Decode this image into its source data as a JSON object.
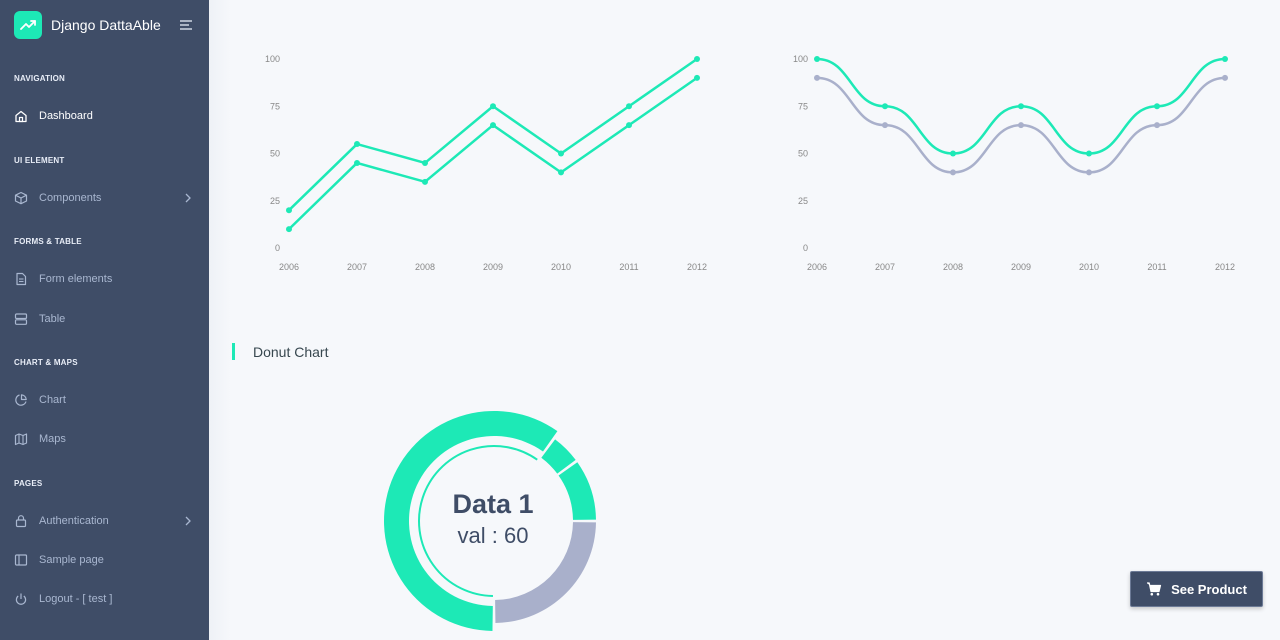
{
  "app": {
    "title": "Django DattaAble"
  },
  "sidebar": {
    "sections": [
      {
        "caption": "NAVIGATION",
        "items": [
          {
            "label": "Dashboard",
            "icon": "home-icon",
            "active": true
          }
        ]
      },
      {
        "caption": "UI ELEMENT",
        "items": [
          {
            "label": "Components",
            "icon": "box-icon",
            "has_children": true
          }
        ]
      },
      {
        "caption": "FORMS & TABLE",
        "items": [
          {
            "label": "Form elements",
            "icon": "file-text-icon"
          },
          {
            "label": "Table",
            "icon": "server-icon"
          }
        ]
      },
      {
        "caption": "CHART & MAPS",
        "items": [
          {
            "label": "Chart",
            "icon": "pie-chart-icon"
          },
          {
            "label": "Maps",
            "icon": "map-icon"
          }
        ]
      },
      {
        "caption": "PAGES",
        "items": [
          {
            "label": "Authentication",
            "icon": "lock-icon",
            "has_children": true
          },
          {
            "label": "Sample page",
            "icon": "sidebar-icon"
          },
          {
            "label": "Logout - [ test ]",
            "icon": "power-icon"
          }
        ]
      }
    ]
  },
  "colors": {
    "sidebar_bg": "#3f4d67",
    "accent": "#1de9b6",
    "secondary": "#a9b0cb"
  },
  "main": {
    "donut_section_title": "Donut Chart",
    "see_product_label": "See Product"
  },
  "chart_data": [
    {
      "type": "line",
      "x": [
        "2006",
        "2007",
        "2008",
        "2009",
        "2010",
        "2011",
        "2012"
      ],
      "series": [
        {
          "values": [
            20,
            55,
            45,
            75,
            50,
            75,
            100
          ],
          "color": "#1de9b6"
        },
        {
          "values": [
            10,
            45,
            35,
            65,
            40,
            65,
            90
          ],
          "color": "#1de9b6"
        }
      ],
      "yticks": [
        "0",
        "25",
        "50",
        "75",
        "100"
      ],
      "ylim": [
        0,
        100
      ]
    },
    {
      "type": "line",
      "smooth": true,
      "x": [
        "2006",
        "2007",
        "2008",
        "2009",
        "2010",
        "2011",
        "2012"
      ],
      "series": [
        {
          "values": [
            100,
            75,
            50,
            75,
            50,
            75,
            100
          ],
          "color": "#1de9b6"
        },
        {
          "values": [
            90,
            65,
            40,
            65,
            40,
            65,
            90
          ],
          "color": "#a9b0cb"
        }
      ],
      "yticks": [
        "0",
        "25",
        "50",
        "75",
        "100"
      ],
      "ylim": [
        0,
        100
      ]
    },
    {
      "type": "pie",
      "donut": true,
      "center_title": "Data 1",
      "center_value": "val : 60",
      "slices": [
        {
          "value": 60,
          "color": "#1de9b6",
          "selected": true
        },
        {
          "value": 5,
          "color": "#1de9b6"
        },
        {
          "value": 10,
          "color": "#1de9b6"
        },
        {
          "value": 25,
          "color": "#a9b0cb"
        }
      ]
    }
  ]
}
